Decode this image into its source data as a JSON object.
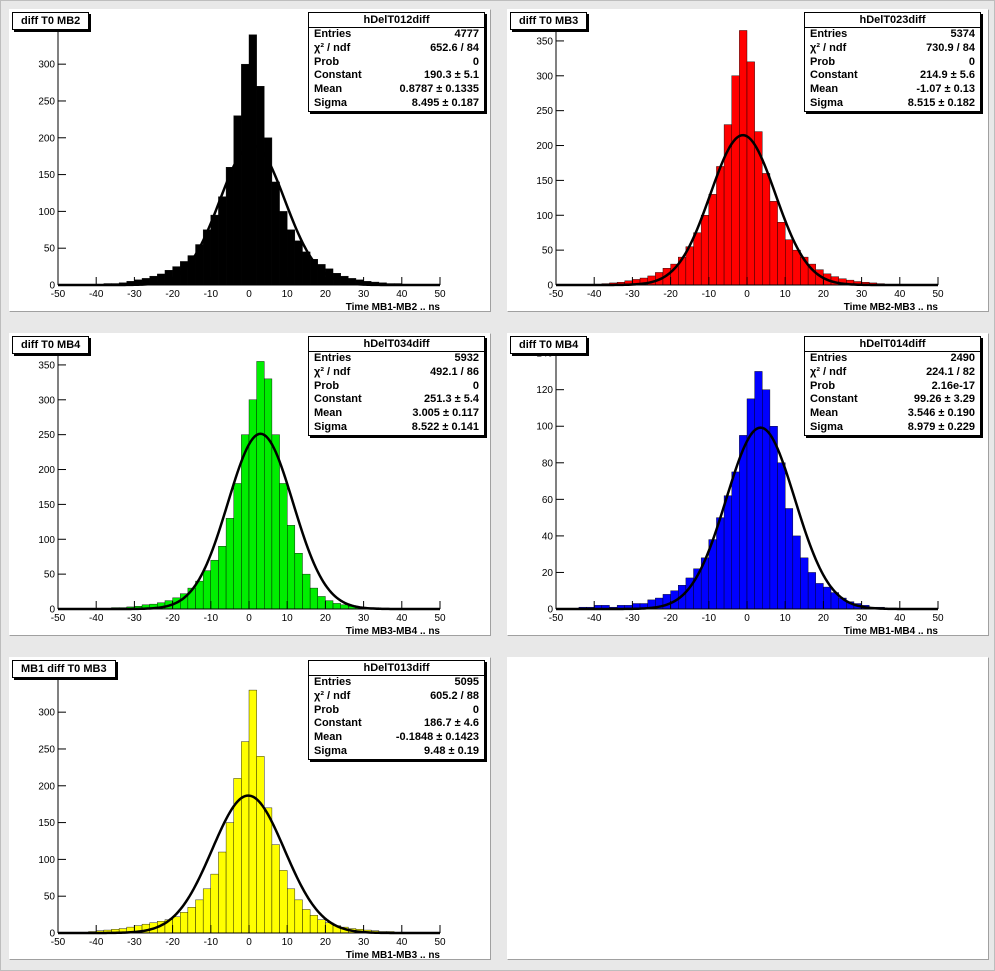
{
  "charts": [
    {
      "title": "diff T0 MB2",
      "stats_name": "hDelT012diff",
      "stats": [
        {
          "label": "Entries",
          "value": "4777"
        },
        {
          "label": "χ² / ndf",
          "value": "652.6 / 84"
        },
        {
          "label": "Prob",
          "value": "0"
        },
        {
          "label": "Constant",
          "value": "190.3 ± 5.1"
        },
        {
          "label": "Mean",
          "value": "0.8787 ± 0.1335"
        },
        {
          "label": "Sigma",
          "value": "8.495 ± 0.187"
        }
      ],
      "xlabel": "Time MB1-MB2  ..  ns",
      "fill": "#000000",
      "yticks": [
        0,
        50,
        100,
        150,
        200,
        250,
        300,
        350
      ],
      "ymax": 360,
      "chart_data": {
        "type": "bar",
        "x": [
          -49,
          -47,
          -45,
          -43,
          -41,
          -39,
          -37,
          -35,
          -33,
          -31,
          -29,
          -27,
          -25,
          -23,
          -21,
          -19,
          -17,
          -15,
          -13,
          -11,
          -9,
          -7,
          -5,
          -3,
          -1,
          1,
          3,
          5,
          7,
          9,
          11,
          13,
          15,
          17,
          19,
          21,
          23,
          25,
          27,
          29,
          31,
          33,
          35,
          37,
          39,
          41,
          43,
          45,
          47,
          49
        ],
        "values": [
          0,
          0,
          0,
          0,
          1,
          1,
          2,
          2,
          3,
          5,
          7,
          9,
          12,
          15,
          20,
          25,
          32,
          40,
          55,
          75,
          95,
          120,
          160,
          230,
          300,
          340,
          270,
          200,
          140,
          100,
          75,
          60,
          45,
          35,
          28,
          22,
          16,
          12,
          9,
          7,
          5,
          4,
          3,
          2,
          2,
          1,
          1,
          0,
          0,
          0
        ],
        "fit": {
          "constant": 190.3,
          "mean": 0.8787,
          "sigma": 8.495
        },
        "xlim": [
          -50,
          50
        ]
      }
    },
    {
      "title": "diff T0 MB3",
      "stats_name": "hDelT023diff",
      "stats": [
        {
          "label": "Entries",
          "value": "5374"
        },
        {
          "label": "χ² / ndf",
          "value": "730.9 / 84"
        },
        {
          "label": "Prob",
          "value": "0"
        },
        {
          "label": "Constant",
          "value": "214.9 ± 5.6"
        },
        {
          "label": "Mean",
          "value": "-1.07 ± 0.13"
        },
        {
          "label": "Sigma",
          "value": "8.515 ± 0.182"
        }
      ],
      "xlabel": "Time MB2-MB3  ..  ns",
      "fill": "#ff0000",
      "yticks": [
        0,
        50,
        100,
        150,
        200,
        250,
        300,
        350
      ],
      "ymax": 380,
      "chart_data": {
        "type": "bar",
        "x": [
          -49,
          -47,
          -45,
          -43,
          -41,
          -39,
          -37,
          -35,
          -33,
          -31,
          -29,
          -27,
          -25,
          -23,
          -21,
          -19,
          -17,
          -15,
          -13,
          -11,
          -9,
          -7,
          -5,
          -3,
          -1,
          1,
          3,
          5,
          7,
          9,
          11,
          13,
          15,
          17,
          19,
          21,
          23,
          25,
          27,
          29,
          31,
          33,
          35,
          37,
          39,
          41,
          43,
          45,
          47,
          49
        ],
        "values": [
          0,
          0,
          0,
          0,
          1,
          1,
          2,
          3,
          4,
          6,
          8,
          10,
          13,
          18,
          24,
          30,
          40,
          55,
          75,
          100,
          130,
          170,
          230,
          300,
          365,
          320,
          220,
          160,
          120,
          90,
          65,
          50,
          40,
          30,
          22,
          16,
          12,
          9,
          7,
          5,
          4,
          3,
          2,
          1,
          1,
          1,
          0,
          0,
          0,
          0
        ],
        "fit": {
          "constant": 214.9,
          "mean": -1.07,
          "sigma": 8.515
        },
        "xlim": [
          -50,
          50
        ]
      }
    },
    {
      "title": "diff T0 MB4",
      "stats_name": "hDelT034diff",
      "stats": [
        {
          "label": "Entries",
          "value": "5932"
        },
        {
          "label": "χ² / ndf",
          "value": "492.1 / 86"
        },
        {
          "label": "Prob",
          "value": "0"
        },
        {
          "label": "Constant",
          "value": "251.3 ± 5.4"
        },
        {
          "label": "Mean",
          "value": "3.005 ± 0.117"
        },
        {
          "label": "Sigma",
          "value": "8.522 ± 0.141"
        }
      ],
      "xlabel": "Time MB3-MB4  ..  ns",
      "fill": "#00ee00",
      "yticks": [
        0,
        50,
        100,
        150,
        200,
        250,
        300,
        350
      ],
      "ymax": 380,
      "chart_data": {
        "type": "bar",
        "x": [
          -49,
          -47,
          -45,
          -43,
          -41,
          -39,
          -37,
          -35,
          -33,
          -31,
          -29,
          -27,
          -25,
          -23,
          -21,
          -19,
          -17,
          -15,
          -13,
          -11,
          -9,
          -7,
          -5,
          -3,
          -1,
          1,
          3,
          5,
          7,
          9,
          11,
          13,
          15,
          17,
          19,
          21,
          23,
          25,
          27,
          29,
          31,
          33,
          35,
          37,
          39,
          41,
          43,
          45,
          47,
          49
        ],
        "values": [
          0,
          0,
          0,
          0,
          0,
          1,
          1,
          2,
          2,
          3,
          4,
          6,
          7,
          9,
          12,
          16,
          22,
          30,
          40,
          55,
          70,
          90,
          130,
          180,
          250,
          300,
          355,
          330,
          250,
          180,
          120,
          80,
          50,
          30,
          18,
          12,
          8,
          6,
          4,
          3,
          2,
          2,
          1,
          1,
          1,
          0,
          0,
          0,
          0,
          0
        ],
        "fit": {
          "constant": 251.3,
          "mean": 3.005,
          "sigma": 8.522
        },
        "xlim": [
          -50,
          50
        ]
      }
    },
    {
      "title": "diff T0 MB4",
      "stats_name": "hDelT014diff",
      "stats": [
        {
          "label": "Entries",
          "value": "2490"
        },
        {
          "label": "χ² / ndf",
          "value": "224.1 / 82"
        },
        {
          "label": "Prob",
          "value": "2.16e-17"
        },
        {
          "label": "Constant",
          "value": "99.26 ± 3.29"
        },
        {
          "label": "Mean",
          "value": "3.546 ± 0.190"
        },
        {
          "label": "Sigma",
          "value": "8.979 ± 0.229"
        }
      ],
      "xlabel": "Time MB1-MB4  ..  ns",
      "fill": "#0000ff",
      "yticks": [
        0,
        20,
        40,
        60,
        80,
        100,
        120,
        140
      ],
      "ymax": 145,
      "chart_data": {
        "type": "bar",
        "x": [
          -49,
          -47,
          -45,
          -43,
          -41,
          -39,
          -37,
          -35,
          -33,
          -31,
          -29,
          -27,
          -25,
          -23,
          -21,
          -19,
          -17,
          -15,
          -13,
          -11,
          -9,
          -7,
          -5,
          -3,
          -1,
          1,
          3,
          5,
          7,
          9,
          11,
          13,
          15,
          17,
          19,
          21,
          23,
          25,
          27,
          29,
          31,
          33,
          35,
          37,
          39,
          41,
          43,
          45,
          47,
          49
        ],
        "values": [
          0,
          0,
          0,
          1,
          1,
          2,
          2,
          1,
          2,
          2,
          3,
          3,
          5,
          6,
          8,
          10,
          13,
          17,
          22,
          28,
          38,
          50,
          62,
          75,
          95,
          115,
          130,
          120,
          100,
          80,
          55,
          40,
          28,
          20,
          14,
          12,
          9,
          6,
          4,
          3,
          2,
          1,
          1,
          0,
          0,
          0,
          0,
          0,
          0,
          0
        ],
        "fit": {
          "constant": 99.26,
          "mean": 3.546,
          "sigma": 8.979
        },
        "xlim": [
          -50,
          50
        ]
      }
    },
    {
      "title": "MB1 diff T0 MB3",
      "stats_name": "hDelT013diff",
      "stats": [
        {
          "label": "Entries",
          "value": "5095"
        },
        {
          "label": "χ² / ndf",
          "value": "605.2 / 88"
        },
        {
          "label": "Prob",
          "value": "0"
        },
        {
          "label": "Constant",
          "value": "186.7 ± 4.6"
        },
        {
          "label": "Mean",
          "value": "-0.1848 ± 0.1423"
        },
        {
          "label": "Sigma",
          "value": "9.48 ± 0.19"
        }
      ],
      "xlabel": "Time MB1-MB3  ..  ns",
      "fill": "#ffff00",
      "yticks": [
        0,
        50,
        100,
        150,
        200,
        250,
        300,
        350
      ],
      "ymax": 360,
      "chart_data": {
        "type": "bar",
        "x": [
          -49,
          -47,
          -45,
          -43,
          -41,
          -39,
          -37,
          -35,
          -33,
          -31,
          -29,
          -27,
          -25,
          -23,
          -21,
          -19,
          -17,
          -15,
          -13,
          -11,
          -9,
          -7,
          -5,
          -3,
          -1,
          1,
          3,
          5,
          7,
          9,
          11,
          13,
          15,
          17,
          19,
          21,
          23,
          25,
          27,
          29,
          31,
          33,
          35,
          37,
          39,
          41,
          43,
          45,
          47,
          49
        ],
        "values": [
          0,
          0,
          1,
          1,
          2,
          3,
          4,
          5,
          6,
          8,
          10,
          12,
          14,
          16,
          18,
          22,
          28,
          35,
          45,
          60,
          80,
          110,
          150,
          210,
          260,
          330,
          240,
          170,
          120,
          85,
          60,
          45,
          32,
          24,
          18,
          14,
          10,
          8,
          6,
          5,
          4,
          3,
          2,
          2,
          1,
          1,
          0,
          0,
          0,
          0
        ],
        "fit": {
          "constant": 186.7,
          "mean": -0.1848,
          "sigma": 9.48
        },
        "xlim": [
          -50,
          50
        ]
      }
    }
  ],
  "x_ticks": [
    "-50",
    "-40",
    "-30",
    "-20",
    "-10",
    "0",
    "10",
    "20",
    "30",
    "40",
    "50"
  ]
}
